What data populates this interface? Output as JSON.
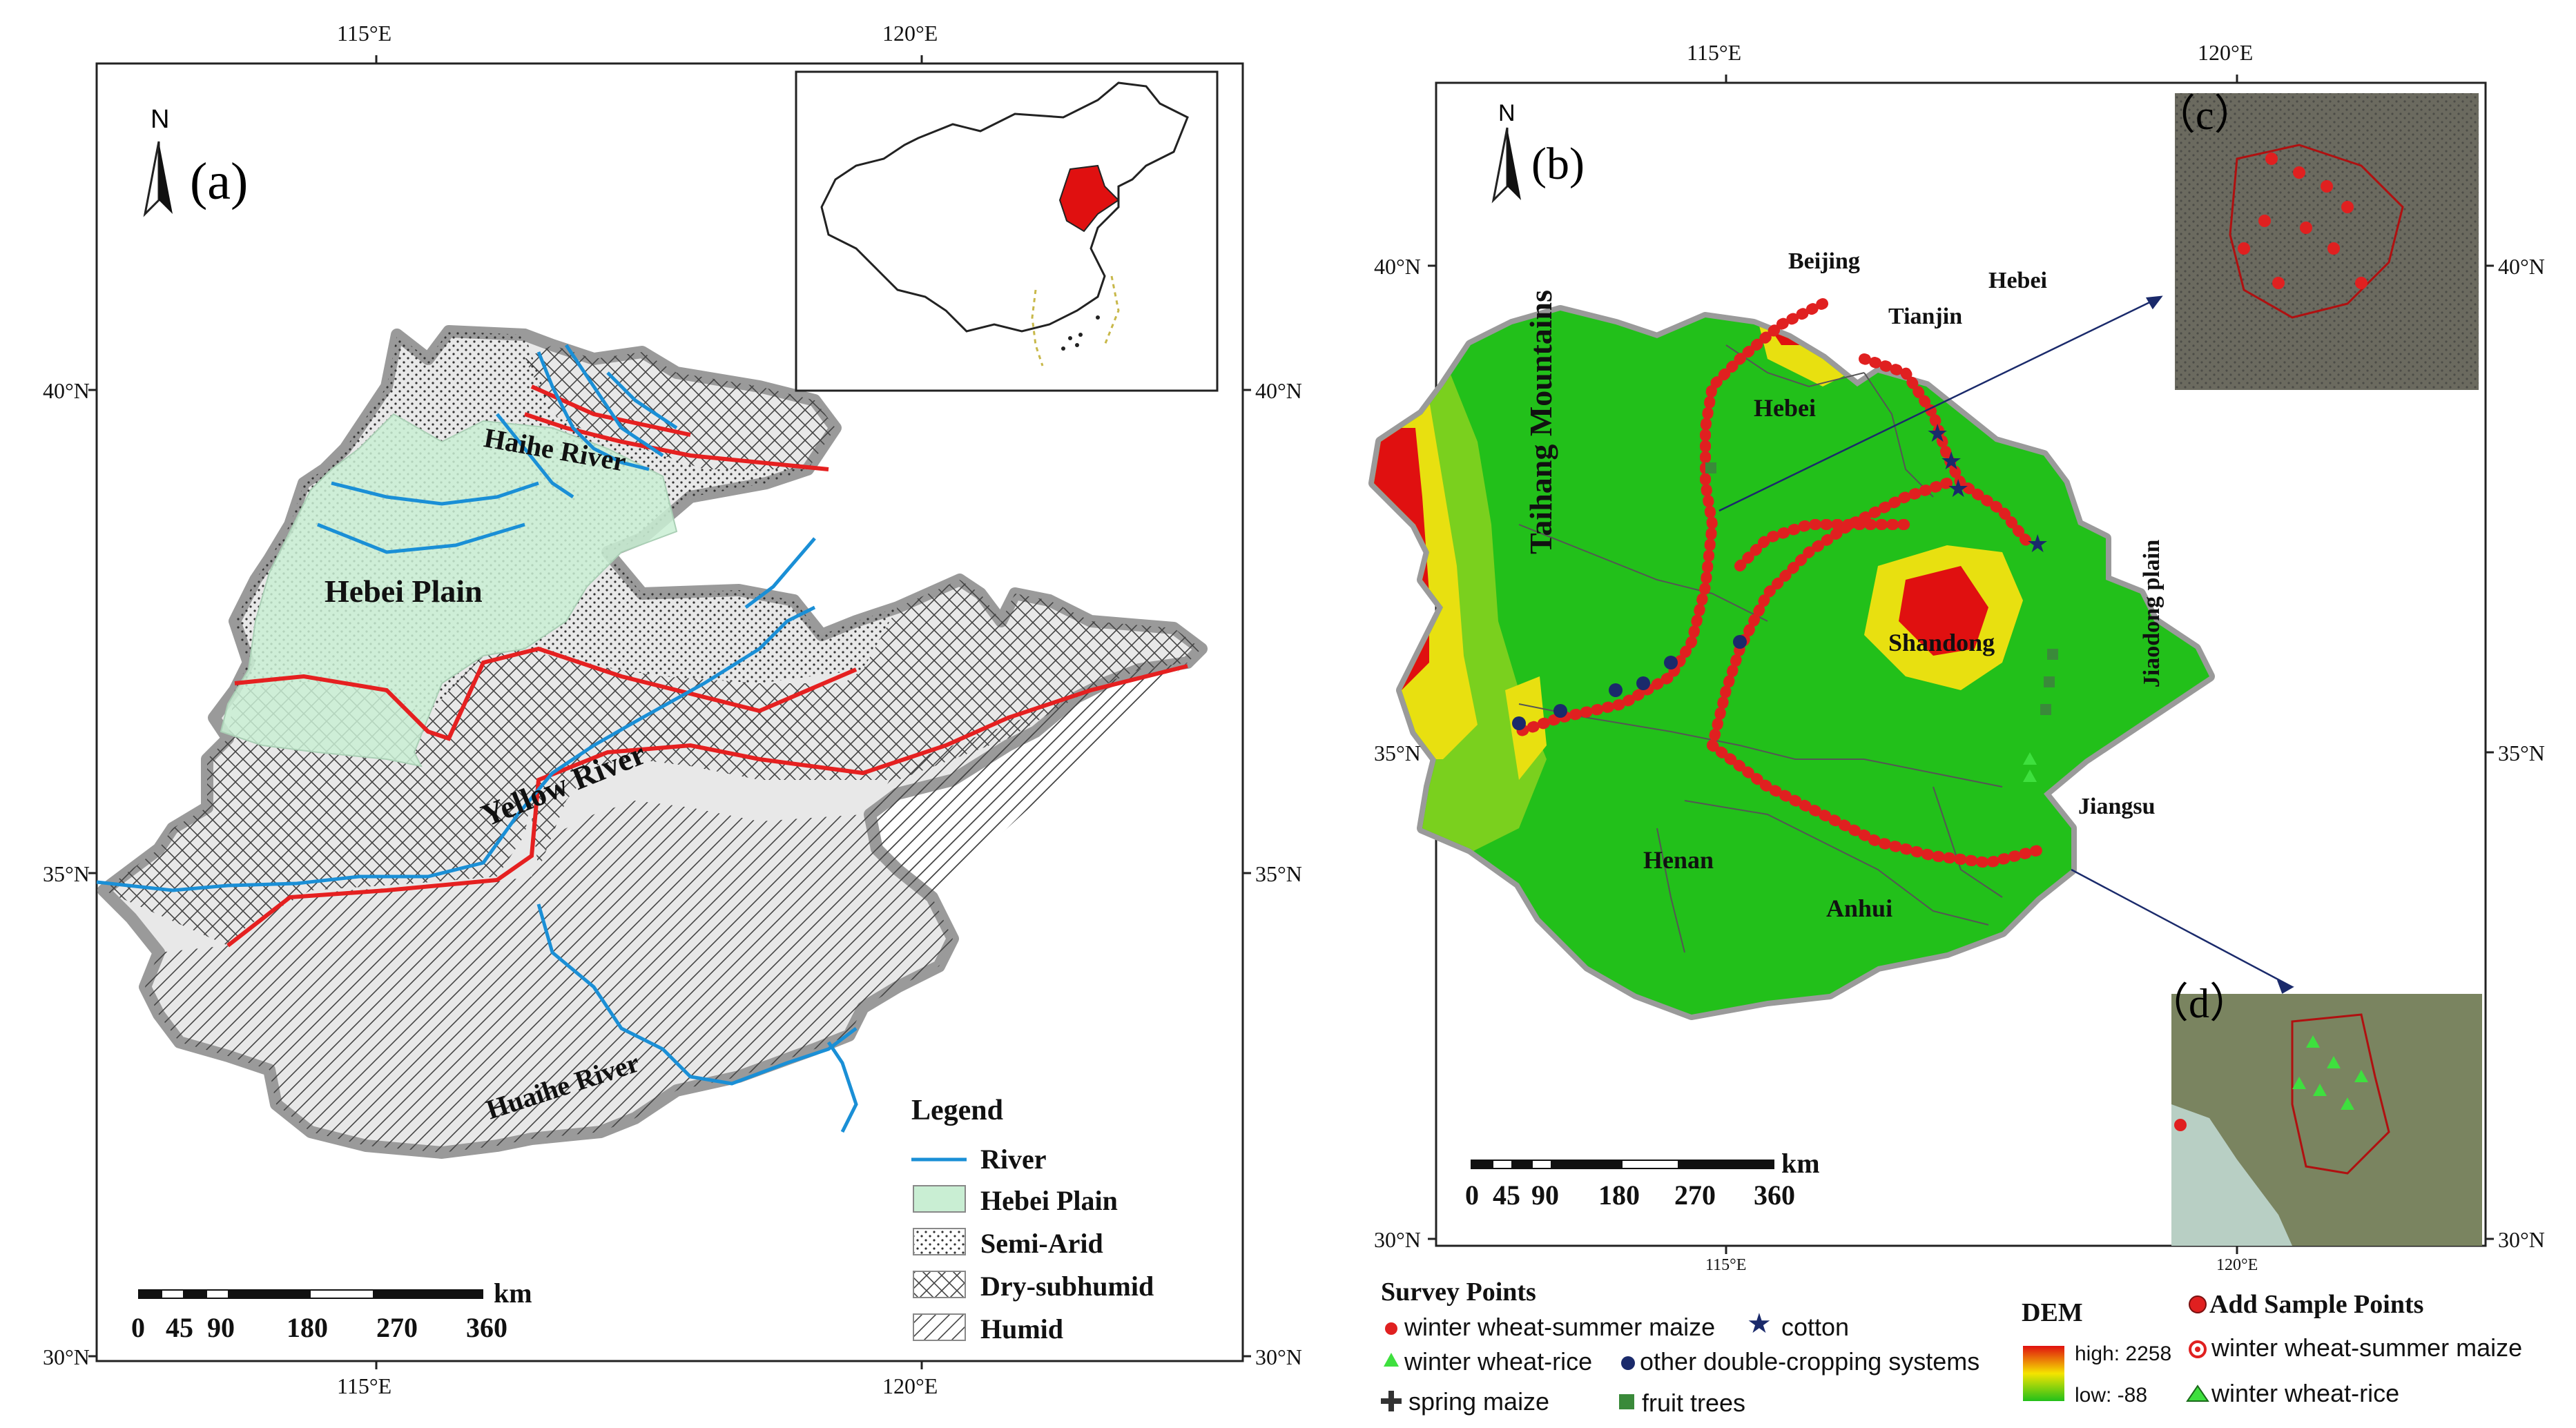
{
  "panel_a": {
    "label": "(a)",
    "north": "N",
    "top_ticks": [
      "115°E",
      "120°E"
    ],
    "bottom_ticks": [
      "115°E",
      "120°E"
    ],
    "left_ticks": [
      "40°N",
      "35°N",
      "30°N"
    ],
    "right_ticks": [
      "40°N",
      "35°N",
      "30°N"
    ],
    "regions": [
      "Haihe River",
      "Hebei Plain",
      "Yellow River",
      "Huaihe River"
    ],
    "legend": {
      "title": "Legend",
      "items": [
        "River",
        "Hebei Plain",
        "Semi-Arid",
        "Dry-subhumid",
        "Humid"
      ]
    },
    "scale": {
      "unit": "km",
      "labels": [
        "0",
        "45",
        "90",
        "180",
        "270",
        "360"
      ]
    },
    "colors": {
      "river": "#1a8fd6",
      "hebei_plain": "#c9eed3",
      "boundary": "#e52020"
    }
  },
  "panel_b": {
    "label": "(b)",
    "north": "N",
    "inset_c": "（c）",
    "inset_d": "（d）",
    "top_ticks": [
      "115°E",
      "120°E"
    ],
    "bottom_ticks": [
      "115°E",
      "120°E"
    ],
    "left_ticks": [
      "40°N",
      "35°N",
      "30°N"
    ],
    "right_ticks": [
      "40°N",
      "35°N",
      "30°N"
    ],
    "places": [
      "Beijing",
      "Tianjin",
      "Hebei",
      "Hebei",
      "Taihang Mountains",
      "Shandong",
      "Jiaodong plain",
      "Jiangsu",
      "Henan",
      "Anhui"
    ],
    "scale": {
      "unit": "km",
      "labels": [
        "0",
        "45",
        "90",
        "180",
        "270",
        "360"
      ]
    },
    "dem": {
      "title": "DEM",
      "high": "high: 2258",
      "low": "low: -88"
    },
    "survey_points": {
      "title": "Survey Points",
      "items": [
        "winter wheat-summer maize",
        "cotton",
        "winter wheat-rice",
        "other double-cropping systems",
        "spring maize",
        "fruit trees"
      ]
    },
    "add_sample": {
      "title": "Add Sample Points",
      "items": [
        "winter wheat-summer maize",
        "winter wheat-rice"
      ]
    },
    "colors": {
      "dem_high": "#e01010",
      "dem_mid": "#f5e400",
      "dem_low": "#22c01a",
      "route": "#e02020"
    }
  }
}
